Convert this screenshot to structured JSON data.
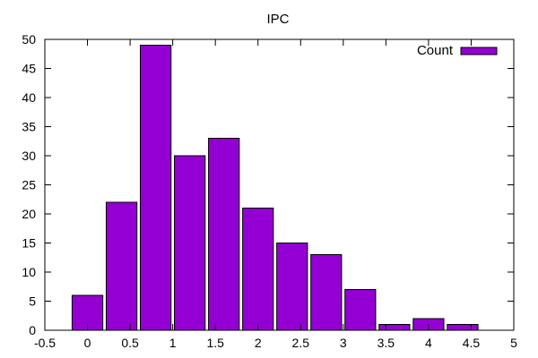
{
  "chart_data": {
    "type": "bar",
    "title": "IPC",
    "xlabel": "",
    "ylabel": "",
    "x": [
      0,
      0.4,
      0.8,
      1.2,
      1.6,
      2.0,
      2.4,
      2.8,
      3.2,
      3.6,
      4.0,
      4.4
    ],
    "bar_width": 0.36,
    "series": [
      {
        "name": "Count",
        "values": [
          6,
          22,
          49,
          30,
          33,
          21,
          15,
          13,
          7,
          1,
          2,
          1
        ],
        "color": "#9400D3"
      }
    ],
    "xlim": [
      -0.5,
      5
    ],
    "ylim": [
      0,
      50
    ],
    "xticks": [
      "-0.5",
      "0",
      "0.5",
      "1",
      "1.5",
      "2",
      "2.5",
      "3",
      "3.5",
      "4",
      "4.5",
      "5"
    ],
    "yticks": [
      "0",
      "5",
      "10",
      "15",
      "20",
      "25",
      "30",
      "35",
      "40",
      "45",
      "50"
    ],
    "legend_position": "top-right",
    "grid": false,
    "bar_edge_color": "#000000",
    "frame_color": "#000000"
  }
}
